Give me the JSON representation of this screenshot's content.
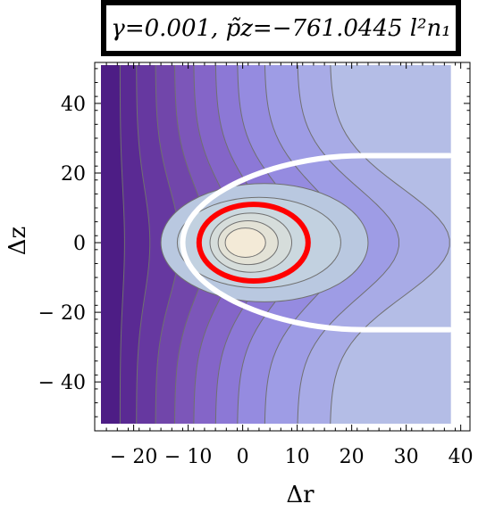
{
  "title": "γ=0.001,  p̃z=−761.0445  l²n₁",
  "chart_data": {
    "type": "contour",
    "xlabel": "Δr",
    "ylabel": "Δz",
    "xlim": [
      -26,
      39
    ],
    "ylim": [
      -52,
      51
    ],
    "xticks": [
      -20,
      -10,
      0,
      10,
      20,
      30,
      40
    ],
    "xtick_labels": [
      "− 20",
      "− 10",
      "0",
      "10",
      "20",
      "30",
      "40"
    ],
    "yticks": [
      -40,
      -20,
      0,
      20,
      40
    ],
    "ytick_labels": [
      "− 40",
      "− 20",
      "0",
      "20",
      "40"
    ],
    "field_center": [
      0,
      0
    ],
    "special_contours": [
      {
        "color": "#ffffff",
        "shape": "open-U",
        "r_min": -11,
        "r_max": 38,
        "z_half": 25
      },
      {
        "color": "#ff0000",
        "shape": "closed",
        "center": [
          2,
          0
        ],
        "r_half": 10,
        "z_half": 11
      }
    ]
  },
  "colors": {
    "outer_level": "#b4bde6",
    "inner_light": "#f3ead7",
    "dark_left": "#4d1d85",
    "contour_line": "#707070"
  }
}
